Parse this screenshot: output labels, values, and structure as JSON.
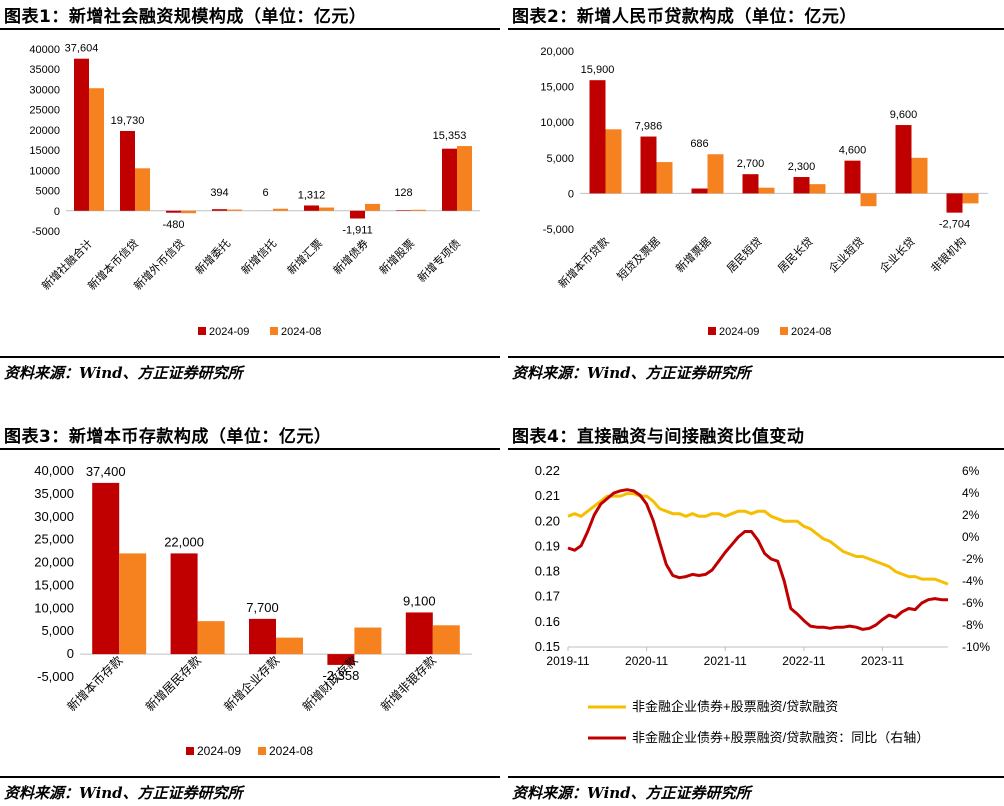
{
  "source_text": "资料来源：Wind、方正证券研究所",
  "colors": {
    "series1": "#C00000",
    "series2": "#F5821F",
    "line_gold": "#F6BE00",
    "line_red": "#C00000",
    "axis": "#BFBFBF"
  },
  "charts": [
    {
      "id": "p1",
      "title": "图表1：新增社会融资规模构成（单位：亿元）",
      "chart_data": {
        "type": "bar",
        "categories": [
          "新增社融合计",
          "新增本币信贷",
          "新增外币信贷",
          "新增委托",
          "新增信托",
          "新增汇票",
          "新增债券",
          "新增股票",
          "新增专项债"
        ],
        "series": [
          {
            "name": "2024-09",
            "values": [
              37604,
              19730,
              -480,
              394,
              6,
              1312,
              -1911,
              128,
              15353
            ]
          },
          {
            "name": "2024-08",
            "values": [
              30300,
              10500,
              -600,
              300,
              500,
              800,
              1700,
              250,
              16000
            ]
          }
        ],
        "data_labels": [
          "37,604",
          "19,730",
          "-480",
          "394",
          "6",
          "1,312",
          "-1,911",
          "128",
          "15,353"
        ],
        "ylim": [
          -5000,
          40000
        ],
        "yticks": [
          -5000,
          0,
          5000,
          10000,
          15000,
          20000,
          25000,
          30000,
          35000,
          40000
        ],
        "ytick_labels": [
          "-5000",
          "0",
          "5000",
          "10000",
          "15000",
          "20000",
          "25000",
          "30000",
          "35000",
          "40000"
        ],
        "legend_position": "bottom"
      }
    },
    {
      "id": "p2",
      "title": "图表2：新增人民币贷款构成（单位：亿元）",
      "chart_data": {
        "type": "bar",
        "categories": [
          "新增本币贷款",
          "短贷及票据",
          "新增票据",
          "居民短贷",
          "居民长贷",
          "企业短贷",
          "企业长贷",
          "非银机构"
        ],
        "series": [
          {
            "name": "2024-09",
            "values": [
              15900,
              7986,
              686,
              2700,
              2300,
              4600,
              9600,
              -2704
            ]
          },
          {
            "name": "2024-08",
            "values": [
              9000,
              4400,
              5500,
              800,
              1300,
              -1800,
              5000,
              -1400
            ]
          }
        ],
        "data_labels": [
          "15,900",
          "7,986",
          "686",
          "2,700",
          "2,300",
          "4,600",
          "9,600",
          "-2,704"
        ],
        "ylim": [
          -5000,
          20000
        ],
        "yticks": [
          -5000,
          0,
          5000,
          10000,
          15000,
          20000
        ],
        "ytick_labels": [
          "-5,000",
          "0",
          "5,000",
          "10,000",
          "15,000",
          "20,000"
        ],
        "legend_position": "bottom"
      }
    },
    {
      "id": "p3",
      "title": "图表3：新增本币存款构成（单位：亿元）",
      "chart_data": {
        "type": "bar",
        "categories": [
          "新增本币存款",
          "新增居民存款",
          "新增企业存款",
          "新增财政存款",
          "新增非银存款"
        ],
        "series": [
          {
            "name": "2024-09",
            "values": [
              37400,
              22000,
              7700,
              -2358,
              9100
            ]
          },
          {
            "name": "2024-08",
            "values": [
              22000,
              7200,
              3600,
              5800,
              6300
            ]
          }
        ],
        "data_labels": [
          "37,400",
          "22,000",
          "7,700",
          "-2,358",
          "9,100"
        ],
        "ylim": [
          -5000,
          40000
        ],
        "yticks": [
          -5000,
          0,
          5000,
          10000,
          15000,
          20000,
          25000,
          30000,
          35000,
          40000
        ],
        "ytick_labels": [
          "-5,000",
          "0",
          "5,000",
          "10,000",
          "15,000",
          "20,000",
          "25,000",
          "30,000",
          "35,000",
          "40,000"
        ],
        "legend_position": "bottom"
      }
    },
    {
      "id": "p4",
      "title": "图表4：直接融资与间接融资比值变动",
      "chart_data": {
        "type": "line",
        "xlim": [
          "2019-11",
          "2024-09"
        ],
        "xticks": [
          "2019-11",
          "2020-11",
          "2021-11",
          "2022-11",
          "2023-11"
        ],
        "ylim_left": [
          0.15,
          0.22
        ],
        "yticks_left": [
          "0.15",
          "0.16",
          "0.17",
          "0.18",
          "0.19",
          "0.20",
          "0.21",
          "0.22"
        ],
        "ylim_right": [
          -10,
          6
        ],
        "yticks_right": [
          "-10%",
          "-8%",
          "-6%",
          "-4%",
          "-2%",
          "0%",
          "2%",
          "4%",
          "6%"
        ],
        "legend_position": "bottom",
        "series": [
          {
            "name": "非金融企业债券+股票融资/贷款融资",
            "axis": "left",
            "x": [
              "2019-11",
              "2019-12",
              "2020-01",
              "2020-02",
              "2020-03",
              "2020-04",
              "2020-05",
              "2020-06",
              "2020-07",
              "2020-08",
              "2020-09",
              "2020-10",
              "2020-11",
              "2020-12",
              "2021-01",
              "2021-02",
              "2021-03",
              "2021-04",
              "2021-05",
              "2021-06",
              "2021-07",
              "2021-08",
              "2021-09",
              "2021-10",
              "2021-11",
              "2021-12",
              "2022-01",
              "2022-02",
              "2022-03",
              "2022-04",
              "2022-05",
              "2022-06",
              "2022-07",
              "2022-08",
              "2022-09",
              "2022-10",
              "2022-11",
              "2022-12",
              "2023-01",
              "2023-02",
              "2023-03",
              "2023-04",
              "2023-05",
              "2023-06",
              "2023-07",
              "2023-08",
              "2023-09",
              "2023-10",
              "2023-11",
              "2023-12",
              "2024-01",
              "2024-02",
              "2024-03",
              "2024-04",
              "2024-05",
              "2024-06",
              "2024-07",
              "2024-08",
              "2024-09"
            ],
            "y": [
              0.202,
              0.203,
              0.202,
              0.204,
              0.206,
              0.208,
              0.21,
              0.21,
              0.21,
              0.211,
              0.211,
              0.21,
              0.21,
              0.208,
              0.205,
              0.204,
              0.203,
              0.203,
              0.202,
              0.203,
              0.202,
              0.202,
              0.203,
              0.203,
              0.202,
              0.203,
              0.204,
              0.204,
              0.203,
              0.204,
              0.204,
              0.202,
              0.201,
              0.2,
              0.2,
              0.2,
              0.198,
              0.197,
              0.195,
              0.193,
              0.192,
              0.19,
              0.188,
              0.187,
              0.186,
              0.186,
              0.185,
              0.184,
              0.183,
              0.182,
              0.18,
              0.179,
              0.178,
              0.178,
              0.177,
              0.177,
              0.177,
              0.176,
              0.175
            ]
          },
          {
            "name": "非金融企业债券+股票融资/贷款融资：同比（右轴）",
            "axis": "right",
            "x": [
              "2019-11",
              "2019-12",
              "2020-01",
              "2020-02",
              "2020-03",
              "2020-04",
              "2020-05",
              "2020-06",
              "2020-07",
              "2020-08",
              "2020-09",
              "2020-10",
              "2020-11",
              "2020-12",
              "2021-01",
              "2021-02",
              "2021-03",
              "2021-04",
              "2021-05",
              "2021-06",
              "2021-07",
              "2021-08",
              "2021-09",
              "2021-10",
              "2021-11",
              "2021-12",
              "2022-01",
              "2022-02",
              "2022-03",
              "2022-04",
              "2022-05",
              "2022-06",
              "2022-07",
              "2022-08",
              "2022-09",
              "2022-10",
              "2022-11",
              "2022-12",
              "2023-01",
              "2023-02",
              "2023-03",
              "2023-04",
              "2023-05",
              "2023-06",
              "2023-07",
              "2023-08",
              "2023-09",
              "2023-10",
              "2023-11",
              "2023-12",
              "2024-01",
              "2024-02",
              "2024-03",
              "2024-04",
              "2024-05",
              "2024-06",
              "2024-07",
              "2024-08",
              "2024-09"
            ],
            "y": [
              -1.0,
              -1.2,
              -0.8,
              0.5,
              2.0,
              3.0,
              3.5,
              4.0,
              4.2,
              4.3,
              4.2,
              3.8,
              3.0,
              1.5,
              -0.5,
              -2.5,
              -3.5,
              -3.7,
              -3.6,
              -3.4,
              -3.5,
              -3.4,
              -3.0,
              -2.2,
              -1.4,
              -0.7,
              0.0,
              0.5,
              0.5,
              -0.3,
              -1.5,
              -2.0,
              -2.2,
              -4.0,
              -6.5,
              -7.0,
              -7.6,
              -8.1,
              -8.2,
              -8.2,
              -8.3,
              -8.2,
              -8.2,
              -8.1,
              -8.2,
              -8.4,
              -8.3,
              -8.0,
              -7.5,
              -7.1,
              -7.3,
              -6.8,
              -6.5,
              -6.6,
              -6.0,
              -5.7,
              -5.6,
              -5.7,
              -5.7
            ]
          }
        ]
      }
    }
  ]
}
